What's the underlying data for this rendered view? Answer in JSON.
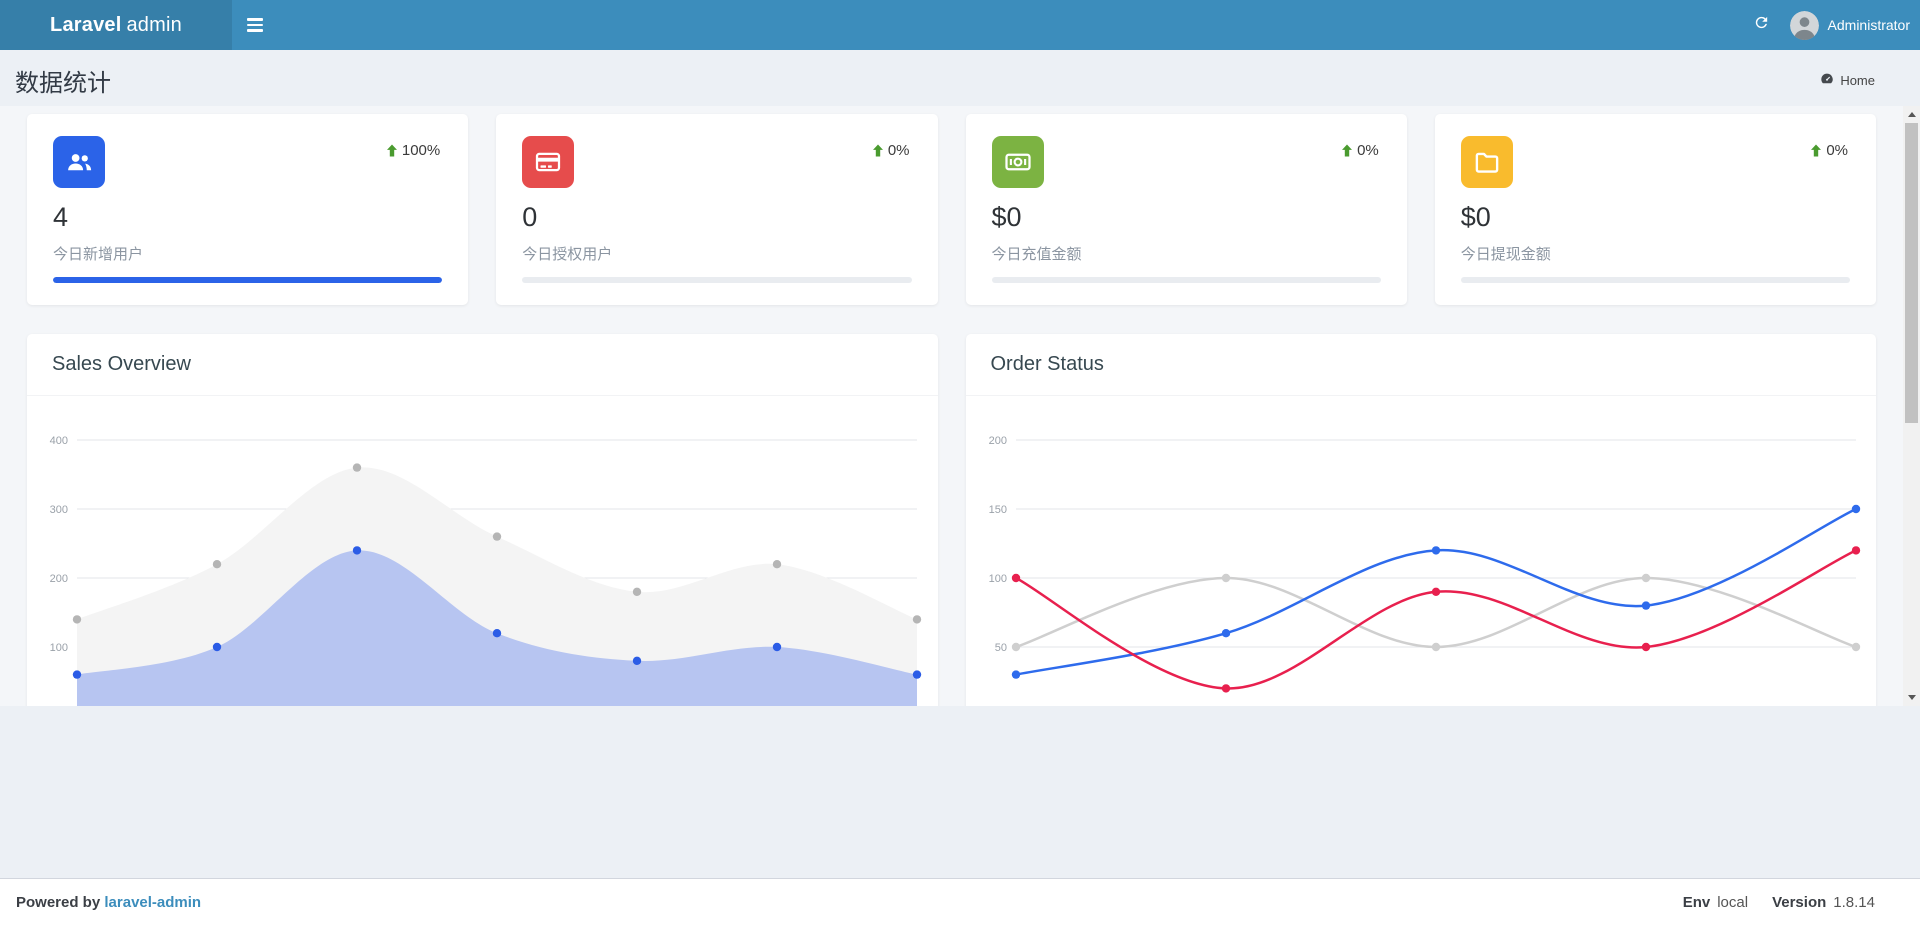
{
  "navbar": {
    "brand_bold": "Laravel",
    "brand_light": "admin",
    "user": "Administrator"
  },
  "page": {
    "title": "数据统计",
    "breadcrumb_label": "Home"
  },
  "colors": {
    "navbar_bg": "#3c8dbc",
    "logo_bg": "#367fa9",
    "trend_green": "#4a9b2f",
    "link_blue": "#3c8dbc",
    "progress_track": "#e9ecf0",
    "content_bg": "#f4f6f9",
    "page_bg": "#ecf0f5"
  },
  "stat_cards": [
    {
      "icon": "users-icon",
      "icon_bg": "#2b63e8",
      "trend": "100%",
      "value": "4",
      "label": "今日新增用户",
      "progress": 100,
      "progress_color": "#2b63e8"
    },
    {
      "icon": "credit-card-icon",
      "icon_bg": "#e64c4c",
      "trend": "0%",
      "value": "0",
      "label": "今日授权用户",
      "progress": 0,
      "progress_color": "#2b63e8"
    },
    {
      "icon": "money-icon",
      "icon_bg": "#7cb342",
      "trend": "0%",
      "value": "$0",
      "label": "今日充值金额",
      "progress": 0,
      "progress_color": "#2b63e8"
    },
    {
      "icon": "folder-icon",
      "icon_bg": "#f9bb2d",
      "trend": "0%",
      "value": "$0",
      "label": "今日提现金额",
      "progress": 0,
      "progress_color": "#2b63e8"
    }
  ],
  "chart_data": [
    {
      "type": "area",
      "title": "Sales Overview",
      "ylim": [
        0,
        400
      ],
      "yticks": [
        0,
        100,
        200,
        300,
        400
      ],
      "grid": true,
      "legend": "none",
      "series": [
        {
          "name": "gray-series",
          "color": "#b5b5b5",
          "fill": "#f4f4f4",
          "values": [
            140,
            220,
            360,
            260,
            180,
            220,
            140
          ]
        },
        {
          "name": "blue-series",
          "color": "#2b5ce6",
          "fill": "#b7c5f1",
          "values": [
            60,
            100,
            240,
            120,
            80,
            100,
            60
          ]
        }
      ]
    },
    {
      "type": "line",
      "title": "Order Status",
      "ylim": [
        0,
        200
      ],
      "yticks": [
        0,
        50,
        100,
        150,
        200
      ],
      "grid": true,
      "legend": "none",
      "series": [
        {
          "name": "gray-series",
          "color": "#cfcfcf",
          "values": [
            50,
            100,
            50,
            100,
            50
          ]
        },
        {
          "name": "blue-series",
          "color": "#2e6bec",
          "values": [
            30,
            60,
            120,
            80,
            150
          ]
        },
        {
          "name": "red-series",
          "color": "#e8204e",
          "values": [
            100,
            20,
            90,
            50,
            120
          ]
        }
      ]
    }
  ],
  "footer": {
    "powered_by": "Powered by",
    "brand_link": "laravel-admin",
    "env_label": "Env",
    "env_value": "local",
    "version_label": "Version",
    "version_value": "1.8.14"
  }
}
